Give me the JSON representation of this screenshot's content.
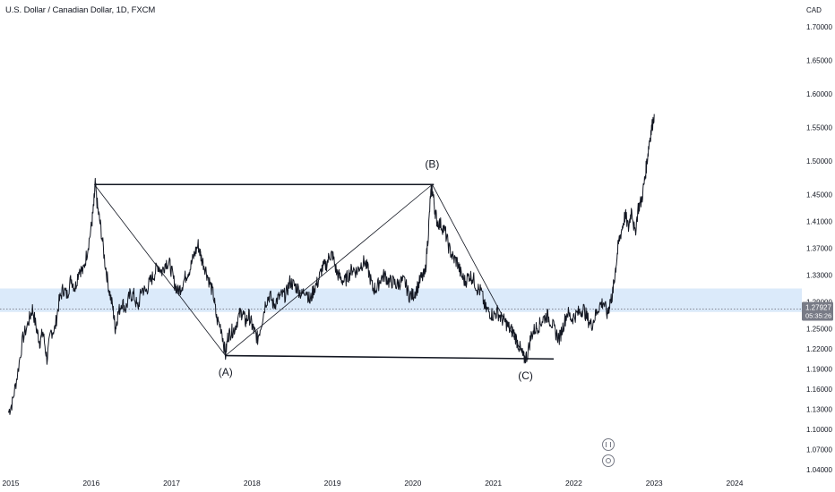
{
  "header": {
    "title": "U.S. Dollar / Canadian Dollar, 1D, FXCM",
    "currency": "CAD"
  },
  "price_tag": {
    "value": "1.27927",
    "countdown": "05:35:26"
  },
  "colors": {
    "price_line": "#131722",
    "zone_fill": "#cfe3f8",
    "pattern_line": "#131722",
    "tag_bg": "#787b86",
    "axis_text": "#131722"
  },
  "chart_data": {
    "type": "line",
    "title": "U.S. Dollar / Canadian Dollar, 1D, FXCM",
    "xlabel": "",
    "ylabel": "CAD",
    "xlim": [
      2015.0,
      2025.2
    ],
    "ylim": [
      1.04,
      1.73
    ],
    "y_scale": "linear",
    "grid": false,
    "x_ticks": [
      {
        "x": 2015,
        "label": "2015"
      },
      {
        "x": 2016,
        "label": "2016"
      },
      {
        "x": 2017,
        "label": "2017"
      },
      {
        "x": 2018,
        "label": "2018"
      },
      {
        "x": 2019,
        "label": "2019"
      },
      {
        "x": 2020,
        "label": "2020"
      },
      {
        "x": 2021,
        "label": "2021"
      },
      {
        "x": 2022,
        "label": "2022"
      },
      {
        "x": 2023,
        "label": "2023"
      },
      {
        "x": 2024,
        "label": "2024"
      }
    ],
    "y_ticks": [
      {
        "y": 1.7,
        "label": "1.70000"
      },
      {
        "y": 1.65,
        "label": "1.65000"
      },
      {
        "y": 1.6,
        "label": "1.60000"
      },
      {
        "y": 1.55,
        "label": "1.55000"
      },
      {
        "y": 1.5,
        "label": "1.50000"
      },
      {
        "y": 1.45,
        "label": "1.45000"
      },
      {
        "y": 1.41,
        "label": "1.41000"
      },
      {
        "y": 1.37,
        "label": "1.37000"
      },
      {
        "y": 1.33,
        "label": "1.33000"
      },
      {
        "y": 1.29,
        "label": "1.29000"
      },
      {
        "y": 1.25,
        "label": "1.25000"
      },
      {
        "y": 1.22,
        "label": "1.22000"
      },
      {
        "y": 1.19,
        "label": "1.19000"
      },
      {
        "y": 1.16,
        "label": "1.16000"
      },
      {
        "y": 1.13,
        "label": "1.13000"
      },
      {
        "y": 1.1,
        "label": "1.10000"
      },
      {
        "y": 1.07,
        "label": "1.07000"
      },
      {
        "y": 1.04,
        "label": "1.04000"
      }
    ],
    "series": [
      {
        "values": [
          [
            2014.97,
            1.125
          ],
          [
            2015.02,
            1.14
          ],
          [
            2015.08,
            1.18
          ],
          [
            2015.15,
            1.235
          ],
          [
            2015.22,
            1.26
          ],
          [
            2015.27,
            1.28
          ],
          [
            2015.32,
            1.25
          ],
          [
            2015.36,
            1.23
          ],
          [
            2015.4,
            1.245
          ],
          [
            2015.45,
            1.205
          ],
          [
            2015.5,
            1.245
          ],
          [
            2015.55,
            1.25
          ],
          [
            2015.6,
            1.29
          ],
          [
            2015.65,
            1.31
          ],
          [
            2015.7,
            1.3
          ],
          [
            2015.75,
            1.325
          ],
          [
            2015.8,
            1.31
          ],
          [
            2015.85,
            1.34
          ],
          [
            2015.9,
            1.335
          ],
          [
            2015.95,
            1.365
          ],
          [
            2016.0,
            1.4
          ],
          [
            2016.03,
            1.43
          ],
          [
            2016.05,
            1.465
          ],
          [
            2016.08,
            1.43
          ],
          [
            2016.12,
            1.4
          ],
          [
            2016.17,
            1.35
          ],
          [
            2016.22,
            1.31
          ],
          [
            2016.27,
            1.28
          ],
          [
            2016.3,
            1.25
          ],
          [
            2016.33,
            1.27
          ],
          [
            2016.38,
            1.29
          ],
          [
            2016.43,
            1.28
          ],
          [
            2016.48,
            1.3
          ],
          [
            2016.53,
            1.3
          ],
          [
            2016.58,
            1.28
          ],
          [
            2016.63,
            1.31
          ],
          [
            2016.68,
            1.305
          ],
          [
            2016.73,
            1.32
          ],
          [
            2016.78,
            1.33
          ],
          [
            2016.83,
            1.345
          ],
          [
            2016.88,
            1.335
          ],
          [
            2016.93,
            1.35
          ],
          [
            2016.98,
            1.345
          ],
          [
            2017.03,
            1.32
          ],
          [
            2017.08,
            1.305
          ],
          [
            2017.13,
            1.315
          ],
          [
            2017.18,
            1.33
          ],
          [
            2017.23,
            1.34
          ],
          [
            2017.28,
            1.36
          ],
          [
            2017.33,
            1.375
          ],
          [
            2017.37,
            1.355
          ],
          [
            2017.42,
            1.34
          ],
          [
            2017.47,
            1.32
          ],
          [
            2017.52,
            1.3
          ],
          [
            2017.56,
            1.265
          ],
          [
            2017.62,
            1.25
          ],
          [
            2017.67,
            1.21
          ],
          [
            2017.7,
            1.24
          ],
          [
            2017.74,
            1.245
          ],
          [
            2017.78,
            1.25
          ],
          [
            2017.84,
            1.27
          ],
          [
            2017.88,
            1.275
          ],
          [
            2017.92,
            1.26
          ],
          [
            2017.96,
            1.27
          ],
          [
            2018.0,
            1.255
          ],
          [
            2018.03,
            1.245
          ],
          [
            2018.07,
            1.235
          ],
          [
            2018.12,
            1.26
          ],
          [
            2018.17,
            1.29
          ],
          [
            2018.22,
            1.3
          ],
          [
            2018.27,
            1.285
          ],
          [
            2018.32,
            1.295
          ],
          [
            2018.37,
            1.3
          ],
          [
            2018.42,
            1.3
          ],
          [
            2018.47,
            1.32
          ],
          [
            2018.52,
            1.315
          ],
          [
            2018.57,
            1.31
          ],
          [
            2018.62,
            1.3
          ],
          [
            2018.67,
            1.31
          ],
          [
            2018.72,
            1.29
          ],
          [
            2018.77,
            1.31
          ],
          [
            2018.82,
            1.32
          ],
          [
            2018.87,
            1.34
          ],
          [
            2018.92,
            1.345
          ],
          [
            2018.97,
            1.36
          ],
          [
            2019.0,
            1.36
          ],
          [
            2019.05,
            1.335
          ],
          [
            2019.1,
            1.325
          ],
          [
            2019.15,
            1.32
          ],
          [
            2019.2,
            1.33
          ],
          [
            2019.25,
            1.34
          ],
          [
            2019.3,
            1.335
          ],
          [
            2019.35,
            1.345
          ],
          [
            2019.4,
            1.35
          ],
          [
            2019.45,
            1.335
          ],
          [
            2019.5,
            1.31
          ],
          [
            2019.55,
            1.31
          ],
          [
            2019.6,
            1.325
          ],
          [
            2019.65,
            1.33
          ],
          [
            2019.7,
            1.32
          ],
          [
            2019.75,
            1.32
          ],
          [
            2019.8,
            1.315
          ],
          [
            2019.85,
            1.32
          ],
          [
            2019.9,
            1.32
          ],
          [
            2019.95,
            1.3
          ],
          [
            2020.0,
            1.3
          ],
          [
            2020.05,
            1.31
          ],
          [
            2020.1,
            1.325
          ],
          [
            2020.15,
            1.33
          ],
          [
            2020.19,
            1.39
          ],
          [
            2020.22,
            1.45
          ],
          [
            2020.24,
            1.46
          ],
          [
            2020.27,
            1.43
          ],
          [
            2020.3,
            1.41
          ],
          [
            2020.35,
            1.405
          ],
          [
            2020.4,
            1.395
          ],
          [
            2020.45,
            1.37
          ],
          [
            2020.5,
            1.355
          ],
          [
            2020.55,
            1.35
          ],
          [
            2020.6,
            1.33
          ],
          [
            2020.65,
            1.32
          ],
          [
            2020.7,
            1.33
          ],
          [
            2020.75,
            1.325
          ],
          [
            2020.8,
            1.31
          ],
          [
            2020.85,
            1.305
          ],
          [
            2020.9,
            1.28
          ],
          [
            2020.95,
            1.275
          ],
          [
            2021.0,
            1.27
          ],
          [
            2021.05,
            1.275
          ],
          [
            2021.1,
            1.265
          ],
          [
            2021.15,
            1.26
          ],
          [
            2021.2,
            1.25
          ],
          [
            2021.25,
            1.245
          ],
          [
            2021.3,
            1.23
          ],
          [
            2021.35,
            1.215
          ],
          [
            2021.38,
            1.205
          ],
          [
            2021.42,
            1.21
          ],
          [
            2021.47,
            1.24
          ],
          [
            2021.52,
            1.25
          ],
          [
            2021.57,
            1.255
          ],
          [
            2021.62,
            1.265
          ],
          [
            2021.67,
            1.27
          ],
          [
            2021.72,
            1.26
          ],
          [
            2021.77,
            1.245
          ],
          [
            2021.82,
            1.235
          ],
          [
            2021.87,
            1.255
          ],
          [
            2021.92,
            1.275
          ],
          [
            2021.97,
            1.265
          ],
          [
            2022.02,
            1.27
          ],
          [
            2022.07,
            1.275
          ],
          [
            2022.12,
            1.28
          ],
          [
            2022.17,
            1.265
          ],
          [
            2022.22,
            1.255
          ],
          [
            2022.27,
            1.27
          ],
          [
            2022.32,
            1.285
          ],
          [
            2022.37,
            1.29
          ],
          [
            2022.42,
            1.27
          ],
          [
            2022.45,
            1.29
          ],
          [
            2022.48,
            1.3
          ],
          [
            2022.5,
            1.32
          ],
          [
            2022.53,
            1.35
          ],
          [
            2022.56,
            1.38
          ],
          [
            2022.6,
            1.4
          ],
          [
            2022.64,
            1.42
          ],
          [
            2022.68,
            1.4
          ],
          [
            2022.72,
            1.43
          ],
          [
            2022.76,
            1.39
          ],
          [
            2022.8,
            1.43
          ],
          [
            2022.84,
            1.44
          ],
          [
            2022.88,
            1.47
          ],
          [
            2022.91,
            1.5
          ],
          [
            2022.94,
            1.53
          ],
          [
            2022.97,
            1.55
          ],
          [
            2023.0,
            1.57
          ]
        ]
      }
    ],
    "price_line_value": 1.27927,
    "shaded_zone": [
      1.275,
      1.31
    ],
    "trendlines": [
      {
        "from": [
          2016.04,
          1.465
        ],
        "to": [
          2020.26,
          1.465
        ]
      },
      {
        "from": [
          2017.67,
          1.21
        ],
        "to": [
          2021.75,
          1.205
        ]
      },
      {
        "from": [
          2016.04,
          1.465
        ],
        "to": [
          2017.67,
          1.21
        ]
      },
      {
        "from": [
          2017.67,
          1.21
        ],
        "to": [
          2020.24,
          1.465
        ]
      },
      {
        "from": [
          2020.24,
          1.465
        ],
        "to": [
          2021.4,
          1.205
        ]
      }
    ],
    "annotations": [
      {
        "text": "(A)",
        "x": 2017.67,
        "y": 1.18
      },
      {
        "text": "(B)",
        "x": 2020.24,
        "y": 1.49
      },
      {
        "text": "(C)",
        "x": 2021.4,
        "y": 1.175
      }
    ]
  }
}
